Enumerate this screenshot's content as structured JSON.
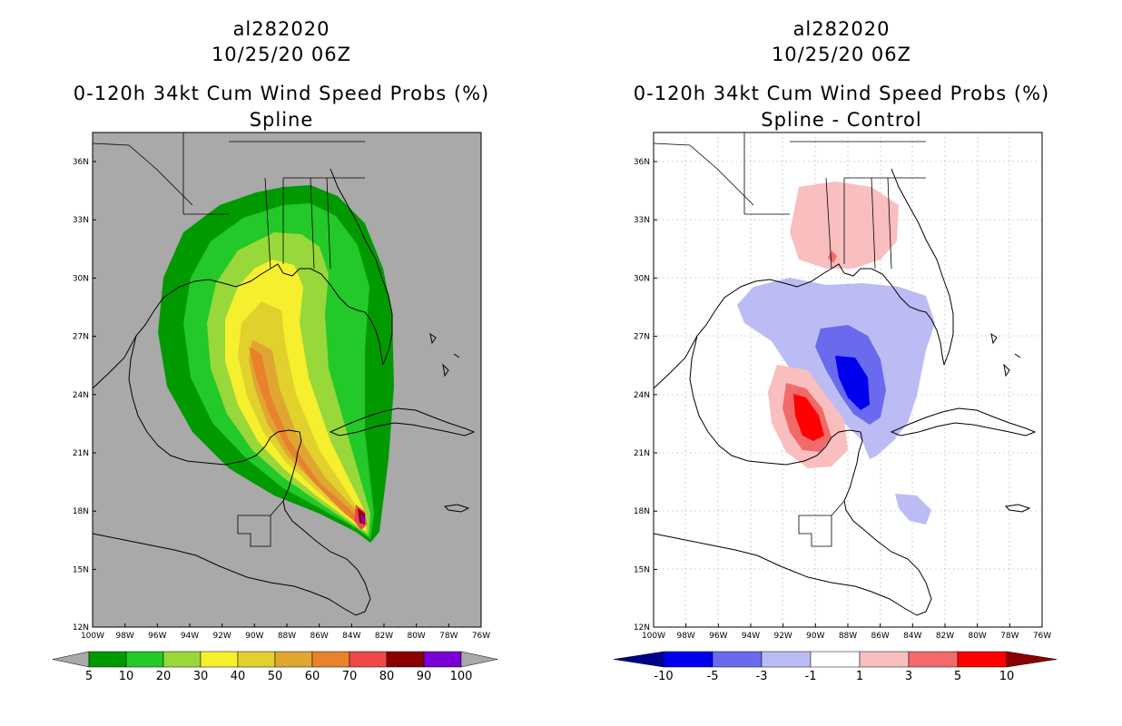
{
  "left": {
    "storm_id": "al282020",
    "datetime": "10/25/20 06Z",
    "product": "0-120h 34kt Cum Wind Speed Probs (%)",
    "variant": "Spline",
    "colorbar": {
      "labels": [
        "5",
        "10",
        "20",
        "30",
        "40",
        "50",
        "60",
        "70",
        "80",
        "90",
        "100"
      ],
      "colors": [
        "#009a00",
        "#22c928",
        "#99d83a",
        "#f5ef2d",
        "#e2d12c",
        "#e0a632",
        "#e8822c",
        "#f1474b",
        "#8a0000",
        "#7a00d6"
      ],
      "end_color": "#a9a9a9"
    },
    "background": "#a9a9a9"
  },
  "right": {
    "storm_id": "al282020",
    "datetime": "10/25/20 06Z",
    "product": "0-120h 34kt Cum Wind Speed Probs (%)",
    "variant": "Spline - Control",
    "colorbar": {
      "labels": [
        "-10",
        "-5",
        "-3",
        "-1",
        "1",
        "3",
        "5",
        "10"
      ],
      "colors": [
        "#0000ee",
        "#6a6aee",
        "#bcbcf4",
        "#ffffff",
        "#f9bebe",
        "#f26a6a",
        "#ff0000"
      ],
      "low_color": "#00008b",
      "high_color": "#8b0000"
    },
    "background": "#ffffff"
  },
  "axes": {
    "lat_labels": [
      "36N",
      "33N",
      "30N",
      "27N",
      "24N",
      "21N",
      "18N",
      "15N",
      "12N"
    ],
    "lon_labels": [
      "100W",
      "98W",
      "96W",
      "94W",
      "92W",
      "90W",
      "88W",
      "86W",
      "84W",
      "82W",
      "80W",
      "78W",
      "76W"
    ]
  }
}
